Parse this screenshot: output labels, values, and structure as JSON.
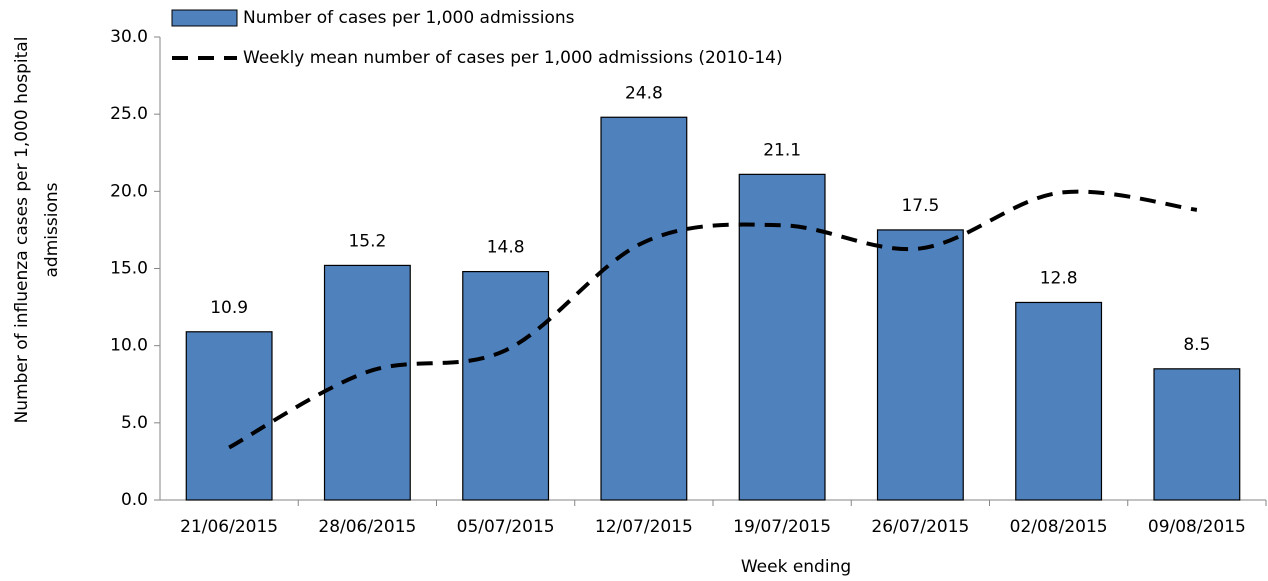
{
  "chart_data": {
    "type": "bar_line",
    "x_label": "Week ending",
    "y_label": [
      "Number of influenza cases per 1,000 hospital",
      "admissions"
    ],
    "categories": [
      "21/06/2015",
      "28/06/2015",
      "05/07/2015",
      "12/07/2015",
      "19/07/2015",
      "26/07/2015",
      "02/08/2015",
      "09/08/2015"
    ],
    "series": [
      {
        "name": "Number of cases per 1,000 admissions",
        "type": "bar",
        "color": "#4f81bd",
        "values": [
          10.9,
          15.2,
          14.8,
          24.8,
          21.1,
          17.5,
          12.8,
          8.5
        ]
      },
      {
        "name": "Weekly mean number of cases per 1,000 admissions (2010-14)",
        "type": "line",
        "color": "#000000",
        "dashed": true,
        "smooth": true,
        "values": [
          3.4,
          8.3,
          9.7,
          16.7,
          17.8,
          16.3,
          19.9,
          18.8
        ]
      }
    ],
    "ylim": [
      0,
      30
    ],
    "yticks": [
      {
        "value": 0,
        "label": "0.0"
      },
      {
        "value": 5,
        "label": "5.0"
      },
      {
        "value": 10,
        "label": "10.0"
      },
      {
        "value": 15,
        "label": "15.0"
      },
      {
        "value": 20,
        "label": "20.0"
      },
      {
        "value": 25,
        "label": "25.0"
      },
      {
        "value": 30,
        "label": "30.0"
      }
    ]
  }
}
